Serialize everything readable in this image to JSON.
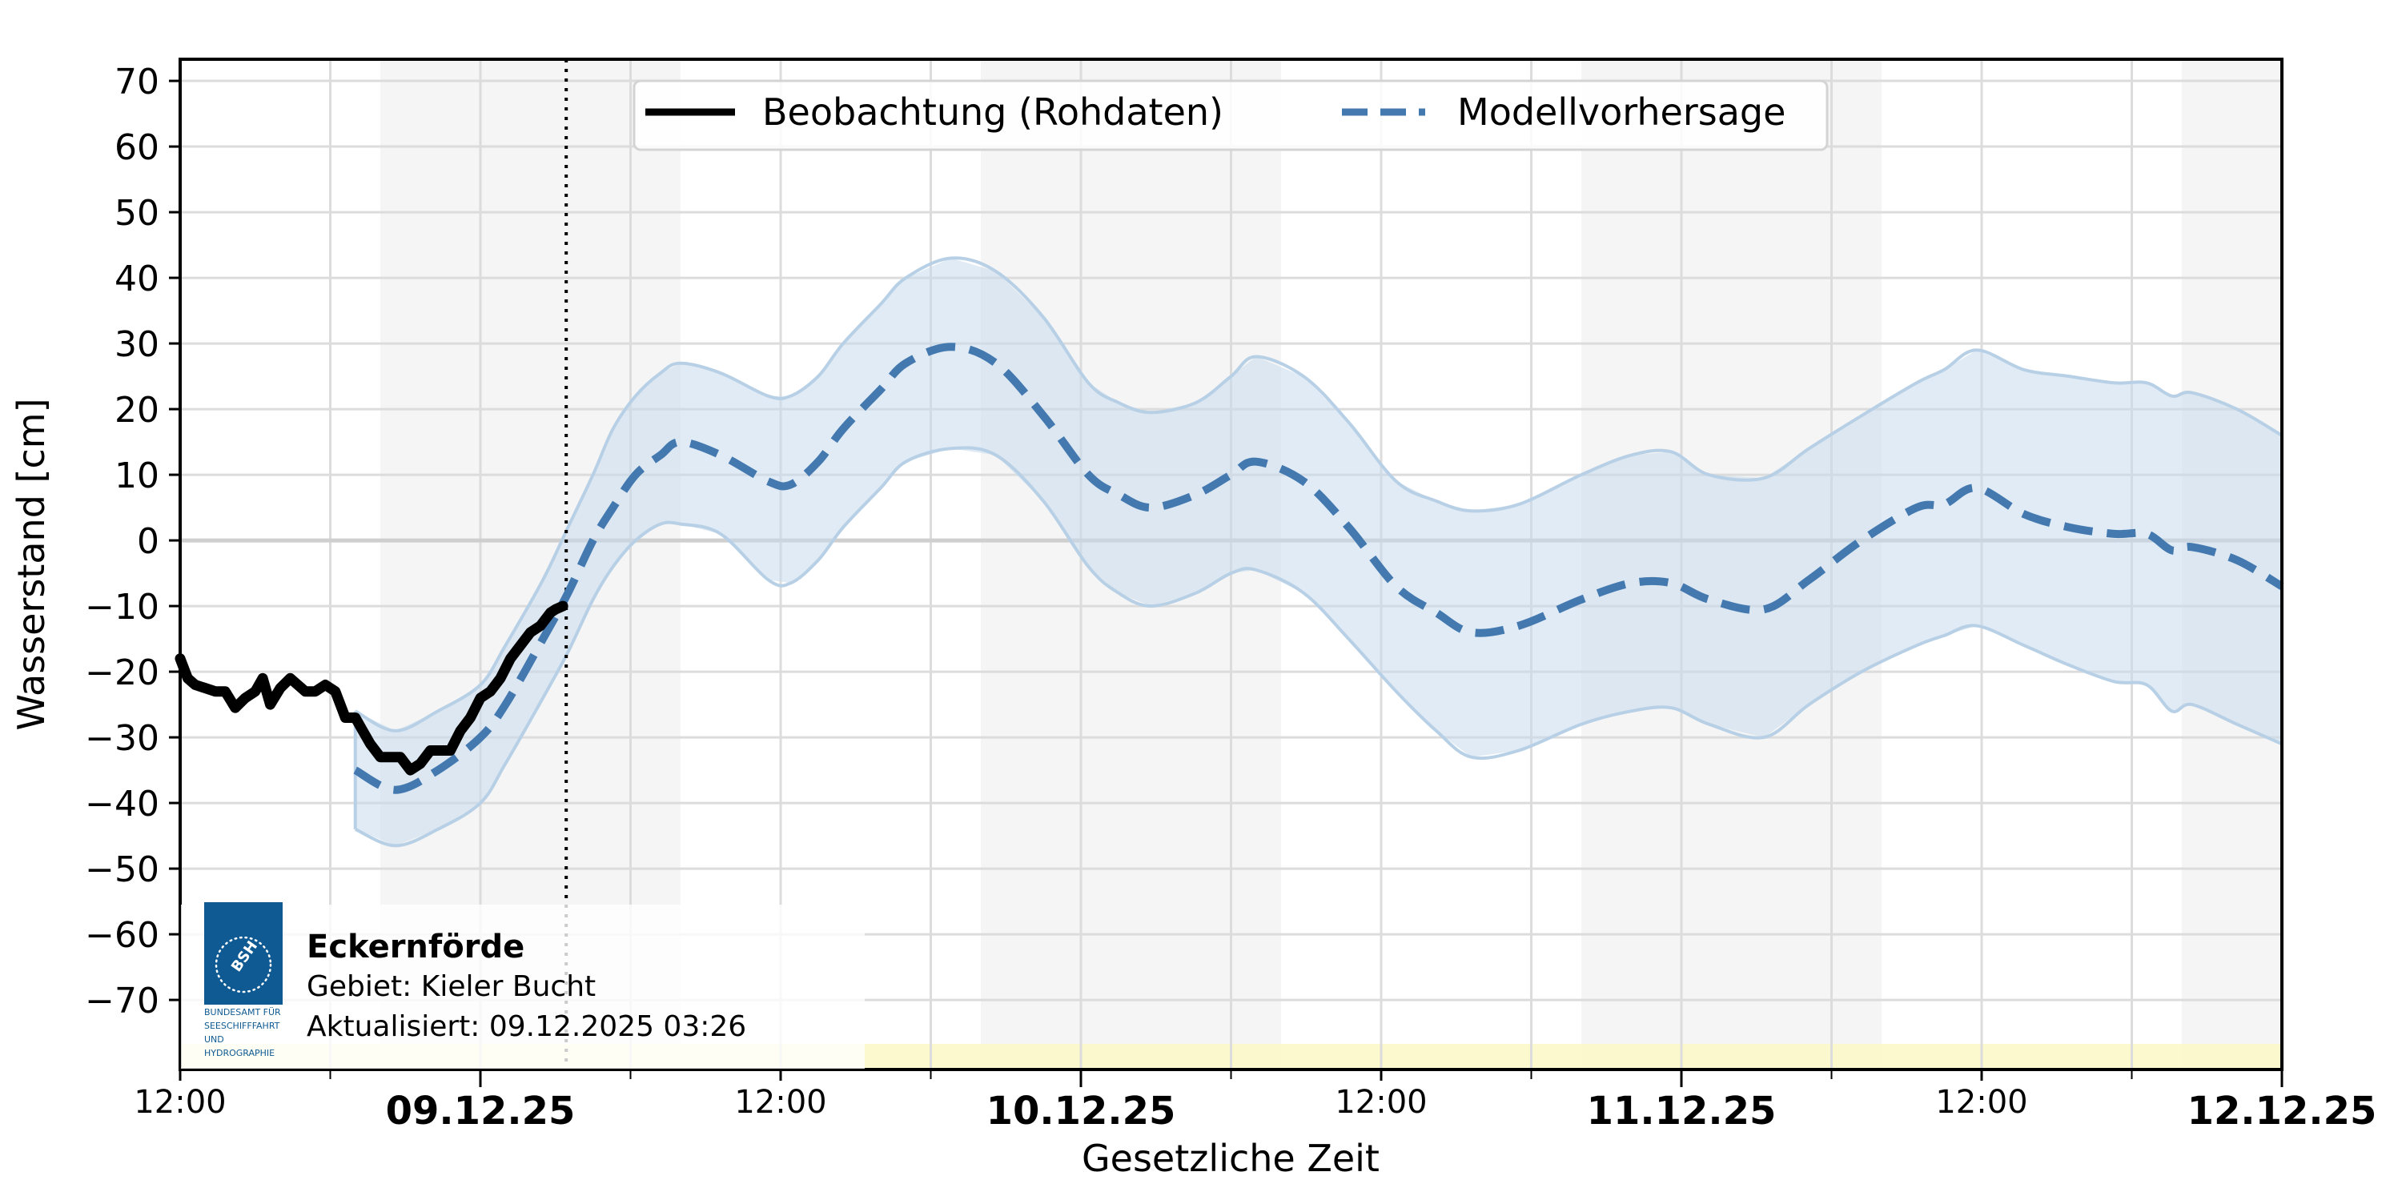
{
  "chart_data": {
    "type": "line",
    "title": "",
    "xlabel": "Gesetzliche Zeit",
    "ylabel": "Wasserstand [cm]",
    "ylim": [
      -80.6,
      73.3
    ],
    "xlim_hours": [
      0,
      84
    ],
    "x_origin": "08.12.25 12:00",
    "grid": true,
    "legend_position": "upper center",
    "y_ticks": [
      70,
      60,
      50,
      40,
      30,
      20,
      10,
      0,
      -10,
      -20,
      -30,
      -40,
      -50,
      -60,
      -70
    ],
    "y_tick_labels": [
      "70",
      "60",
      "50",
      "40",
      "30",
      "20",
      "10",
      "0",
      "−10",
      "−20",
      "−30",
      "−40",
      "−50",
      "−60",
      "−70"
    ],
    "x_ticks": [
      {
        "hour": 0,
        "label": "12:00",
        "major": false
      },
      {
        "hour": 12,
        "label": "09.12.25",
        "major": true
      },
      {
        "hour": 24,
        "label": "12:00",
        "major": false
      },
      {
        "hour": 36,
        "label": "10.12.25",
        "major": true
      },
      {
        "hour": 48,
        "label": "12:00",
        "major": false
      },
      {
        "hour": 60,
        "label": "11.12.25",
        "major": true
      },
      {
        "hour": 72,
        "label": "12:00",
        "major": false
      },
      {
        "hour": 84,
        "label": "12.12.25",
        "major": true
      }
    ],
    "x_minor_tick_hours": [
      6,
      18,
      30,
      42,
      54,
      66,
      78
    ],
    "night_bands_hours": [
      [
        8,
        20
      ],
      [
        32,
        44
      ],
      [
        56,
        68
      ],
      [
        80,
        84
      ]
    ],
    "now_marker_hour": 15.43,
    "series": [
      {
        "name": "Beobachtung (Rohdaten)",
        "style": "solid",
        "color": "#000000",
        "x_hours": [
          0,
          0.3,
          0.6,
          1.0,
          1.4,
          1.8,
          2.2,
          2.6,
          3.0,
          3.3,
          3.6,
          4.0,
          4.4,
          4.7,
          5.0,
          5.4,
          5.8,
          6.2,
          6.6,
          7.0,
          7.3,
          7.6,
          8.0,
          8.4,
          8.8,
          9.2,
          9.6,
          10.0,
          10.4,
          10.8,
          11.2,
          11.6,
          12.0,
          12.4,
          12.8,
          13.2,
          13.6,
          14.0,
          14.4,
          14.8,
          15.0,
          15.3
        ],
        "values": [
          -18,
          -21,
          -22,
          -22.5,
          -23,
          -23,
          -25.5,
          -24,
          -23,
          -21,
          -25,
          -22.5,
          -21,
          -22,
          -23,
          -23,
          -22,
          -23,
          -27,
          -27,
          -29,
          -31,
          -33,
          -33,
          -33,
          -35,
          -34,
          -32,
          -32,
          -32,
          -29,
          -27,
          -24,
          -23,
          -21,
          -18,
          -16,
          -14,
          -13,
          -11,
          -10.5,
          -10
        ]
      },
      {
        "name": "Modellvorhersage",
        "style": "dashed",
        "color": "#4479b0",
        "x_hours": [
          7,
          8.6,
          10.3,
          12,
          13,
          14.5,
          15.5,
          16.5,
          17.3,
          18.2,
          19.2,
          20,
          21.6,
          23.5,
          24.4,
          25.5,
          26.5,
          28,
          29,
          30.8,
          32.6,
          34.5,
          36.3,
          37.5,
          38.8,
          40.6,
          42,
          43,
          44.9,
          46.7,
          48.6,
          50.2,
          51.6,
          53.5,
          56,
          58,
          59.6,
          61.1,
          63.3,
          65.1,
          67.2,
          69.4,
          70.5,
          71.8,
          73.7,
          75.5,
          77.3,
          78.6,
          79.6,
          80.4,
          82.2,
          84
        ],
        "values": [
          -35,
          -38,
          -35,
          -30,
          -25,
          -15,
          -8,
          0,
          5,
          10,
          13,
          15,
          13,
          9,
          8.5,
          12,
          17,
          23,
          27,
          29.5,
          27,
          19,
          10,
          7,
          5,
          7,
          10,
          12,
          9,
          2,
          -7,
          -11,
          -14,
          -13,
          -9,
          -6.5,
          -6.5,
          -9,
          -10.5,
          -6,
          0,
          5,
          5.5,
          8,
          4,
          2,
          1,
          1,
          -1.5,
          -1,
          -3,
          -7
        ]
      },
      {
        "name": "Vorhersage-Unsicherheitsbereich (oben)",
        "style": "band-upper",
        "color": "#b8d0e6",
        "x_hours": [
          7,
          8.6,
          10.3,
          12,
          13,
          14.5,
          15.5,
          16.5,
          17.3,
          18.2,
          19.2,
          20,
          21.6,
          23.5,
          24.4,
          25.5,
          26.5,
          28,
          29,
          30.8,
          32.6,
          34.5,
          36.3,
          37.5,
          38.8,
          40.6,
          42,
          43,
          44.9,
          46.7,
          48.6,
          50.2,
          51.6,
          53.5,
          56,
          58,
          59.6,
          61.1,
          63.3,
          65.1,
          67.2,
          69.4,
          70.5,
          71.8,
          73.7,
          75.5,
          77.3,
          78.6,
          79.6,
          80.4,
          82.2,
          84
        ],
        "values": [
          -26,
          -29,
          -26,
          -22,
          -16,
          -6,
          2,
          10,
          17,
          22,
          25.5,
          27,
          25.5,
          22,
          22,
          25,
          30,
          36,
          40,
          43,
          41,
          34,
          24,
          21,
          19.5,
          21,
          25,
          28,
          25,
          18,
          9,
          6,
          4.5,
          5.5,
          10,
          13,
          13.5,
          10,
          9.5,
          14,
          19,
          24,
          26,
          29,
          26,
          25,
          24,
          24,
          22,
          22.5,
          20,
          16
        ]
      },
      {
        "name": "Vorhersage-Unsicherheitsbereich (unten)",
        "style": "band-lower",
        "color": "#b8d0e6",
        "x_hours": [
          7,
          8.6,
          10.3,
          12,
          13,
          14.5,
          15.5,
          16.5,
          17.3,
          18.2,
          19.2,
          20,
          21.6,
          23.5,
          24.4,
          25.5,
          26.5,
          28,
          29,
          30.8,
          32.6,
          34.5,
          36.3,
          37.5,
          38.8,
          40.6,
          42,
          43,
          44.9,
          46.7,
          48.6,
          50.2,
          51.6,
          53.5,
          56,
          58,
          59.6,
          61.1,
          63.3,
          65.1,
          67.2,
          69.4,
          70.5,
          71.8,
          73.7,
          75.5,
          77.3,
          78.6,
          79.6,
          80.4,
          82.2,
          84
        ],
        "values": [
          -44,
          -46.5,
          -44,
          -40,
          -34,
          -24,
          -17,
          -9,
          -4,
          0,
          2.5,
          2.5,
          1,
          -6,
          -6.5,
          -3,
          2,
          8,
          12,
          14,
          13,
          6,
          -4,
          -8,
          -10,
          -8,
          -5,
          -4.5,
          -8,
          -15,
          -23,
          -29,
          -33,
          -32,
          -28,
          -26,
          -25.5,
          -28,
          -30,
          -25,
          -20,
          -16,
          -14.5,
          -13,
          -16,
          -19,
          -21.5,
          -22,
          -26,
          -25,
          -28,
          -31
        ]
      }
    ]
  },
  "legend": {
    "items": [
      {
        "label": "Beobachtung (Rohdaten)",
        "style": "solid",
        "color": "#000000"
      },
      {
        "label": "Modellvorhersage",
        "style": "dashed",
        "color": "#4479b0"
      }
    ]
  },
  "info_box": {
    "station": "Eckernförde",
    "area": "Gebiet: Kieler Bucht",
    "updated": "Aktualisiert: 09.12.2025 03:26",
    "logo": {
      "mark": "BSH",
      "lines": [
        "BUNDESAMT FÜR",
        "SEESCHIFFFAHRT",
        "UND",
        "HYDROGRAPHIE"
      ],
      "color": "#0f5a92"
    }
  },
  "colors": {
    "grid": "#dcdcdc",
    "night_band": "#f5f5f5",
    "band_fill": "#c6daed",
    "band_edge": "#b8d0e6",
    "forecast": "#4479b0",
    "observation": "#000000",
    "bottom_strip": "#fbf8c8"
  }
}
